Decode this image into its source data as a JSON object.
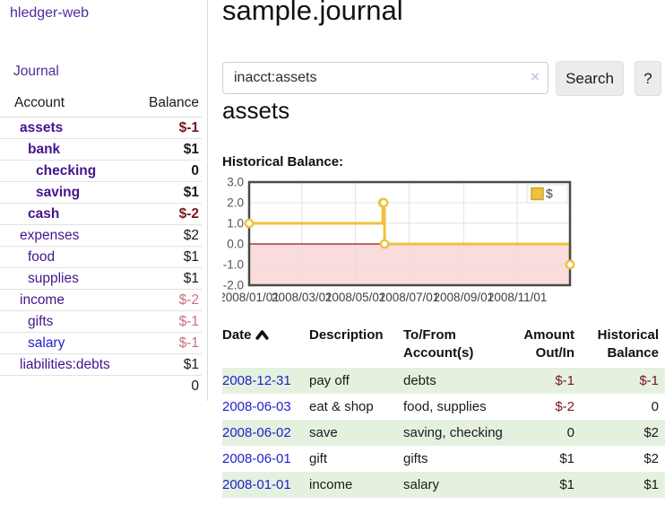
{
  "sidebar": {
    "brand": "hledger-web",
    "journal_label": "Journal",
    "accounts_table": {
      "headers": {
        "account": "Account",
        "balance": "Balance"
      },
      "rows": [
        {
          "name": "assets",
          "depth": 0,
          "bold": true,
          "balance": "$-1",
          "balance_style": "neg"
        },
        {
          "name": "bank",
          "depth": 1,
          "bold": true,
          "balance": "$1",
          "balance_style": ""
        },
        {
          "name": "checking",
          "depth": 2,
          "bold": true,
          "balance": "0",
          "balance_style": ""
        },
        {
          "name": "saving",
          "depth": 2,
          "bold": true,
          "balance": "$1",
          "balance_style": ""
        },
        {
          "name": "cash",
          "depth": 1,
          "bold": true,
          "balance": "$-2",
          "balance_style": "neg"
        },
        {
          "name": "expenses",
          "depth": 0,
          "bold": false,
          "balance": "$2",
          "balance_style": ""
        },
        {
          "name": "food",
          "depth": 1,
          "bold": false,
          "balance": "$1",
          "balance_style": ""
        },
        {
          "name": "supplies",
          "depth": 1,
          "bold": false,
          "balance": "$1",
          "balance_style": ""
        },
        {
          "name": "income",
          "depth": 0,
          "bold": false,
          "balance": "$-2",
          "balance_style": "neg-faded"
        },
        {
          "name": "gifts",
          "depth": 1,
          "bold": false,
          "balance": "$-1",
          "balance_style": "neg-faded"
        },
        {
          "name": "salary",
          "depth": 1,
          "bold": false,
          "link_style": "unvisited",
          "balance": "$-1",
          "balance_style": "neg-faded"
        },
        {
          "name": "liabilities:debts",
          "depth": 0,
          "bold": false,
          "balance": "$1",
          "balance_style": ""
        }
      ],
      "total": "0"
    }
  },
  "header": {
    "title": "sample.journal"
  },
  "search": {
    "value": "inacct:assets",
    "clear_icon": "×",
    "button_label": "Search",
    "help_label": "?"
  },
  "account_page": {
    "heading": "assets",
    "chart_label": "Historical Balance:"
  },
  "chart_data": {
    "type": "line",
    "title": "Historical Balance:",
    "line_style": "steps",
    "series": [
      {
        "name": "$",
        "color": "#EDC240",
        "points": [
          {
            "date": "2008-01-01",
            "value": 1
          },
          {
            "date": "2008-06-01",
            "value": 2
          },
          {
            "date": "2008-06-02",
            "value": 2
          },
          {
            "date": "2008-06-03",
            "value": 0
          },
          {
            "date": "2008-12-31",
            "value": -1
          }
        ]
      }
    ],
    "ylim": [
      -2,
      3
    ],
    "yticks": [
      "3.0",
      "2.0",
      "1.0",
      "0.0",
      "-1.0",
      "-2.0"
    ],
    "xlim": [
      "2008-01-01",
      "2008-12-31"
    ],
    "xticks": [
      "2008/01/01",
      "2008/03/01",
      "2008/05/01",
      "2008/07/01",
      "2008/09/01",
      "2008/11/01"
    ],
    "legend": {
      "label": "$",
      "position": "top-right"
    },
    "grid": true,
    "colors": {
      "frame": "#4a4a4a",
      "gridline": "#e0e0e0",
      "negative_region": "#fbdcdc",
      "zero_line": "#8b1a1a",
      "axis_text": "#545454"
    }
  },
  "register_table": {
    "headers": {
      "date": "Date",
      "description": "Description",
      "accounts": "To/From Account(s)",
      "amount": "Amount Out/In",
      "balance": "Historical Balance"
    },
    "rows": [
      {
        "date": "2008-12-31",
        "description": "pay off",
        "accounts": "debts",
        "amount": "$-1",
        "amount_style": "neg",
        "balance": "$-1",
        "balance_style": "neg"
      },
      {
        "date": "2008-06-03",
        "description": "eat & shop",
        "accounts": "food, supplies",
        "amount": "$-2",
        "amount_style": "neg",
        "balance": "0",
        "balance_style": ""
      },
      {
        "date": "2008-06-02",
        "description": "save",
        "accounts": "saving, checking",
        "amount": "0",
        "amount_style": "",
        "balance": "$2",
        "balance_style": ""
      },
      {
        "date": "2008-06-01",
        "description": "gift",
        "accounts": "gifts",
        "amount": "$1",
        "amount_style": "",
        "balance": "$2",
        "balance_style": ""
      },
      {
        "date": "2008-01-01",
        "description": "income",
        "accounts": "salary",
        "amount": "$1",
        "amount_style": "",
        "balance": "$1",
        "balance_style": ""
      }
    ]
  }
}
